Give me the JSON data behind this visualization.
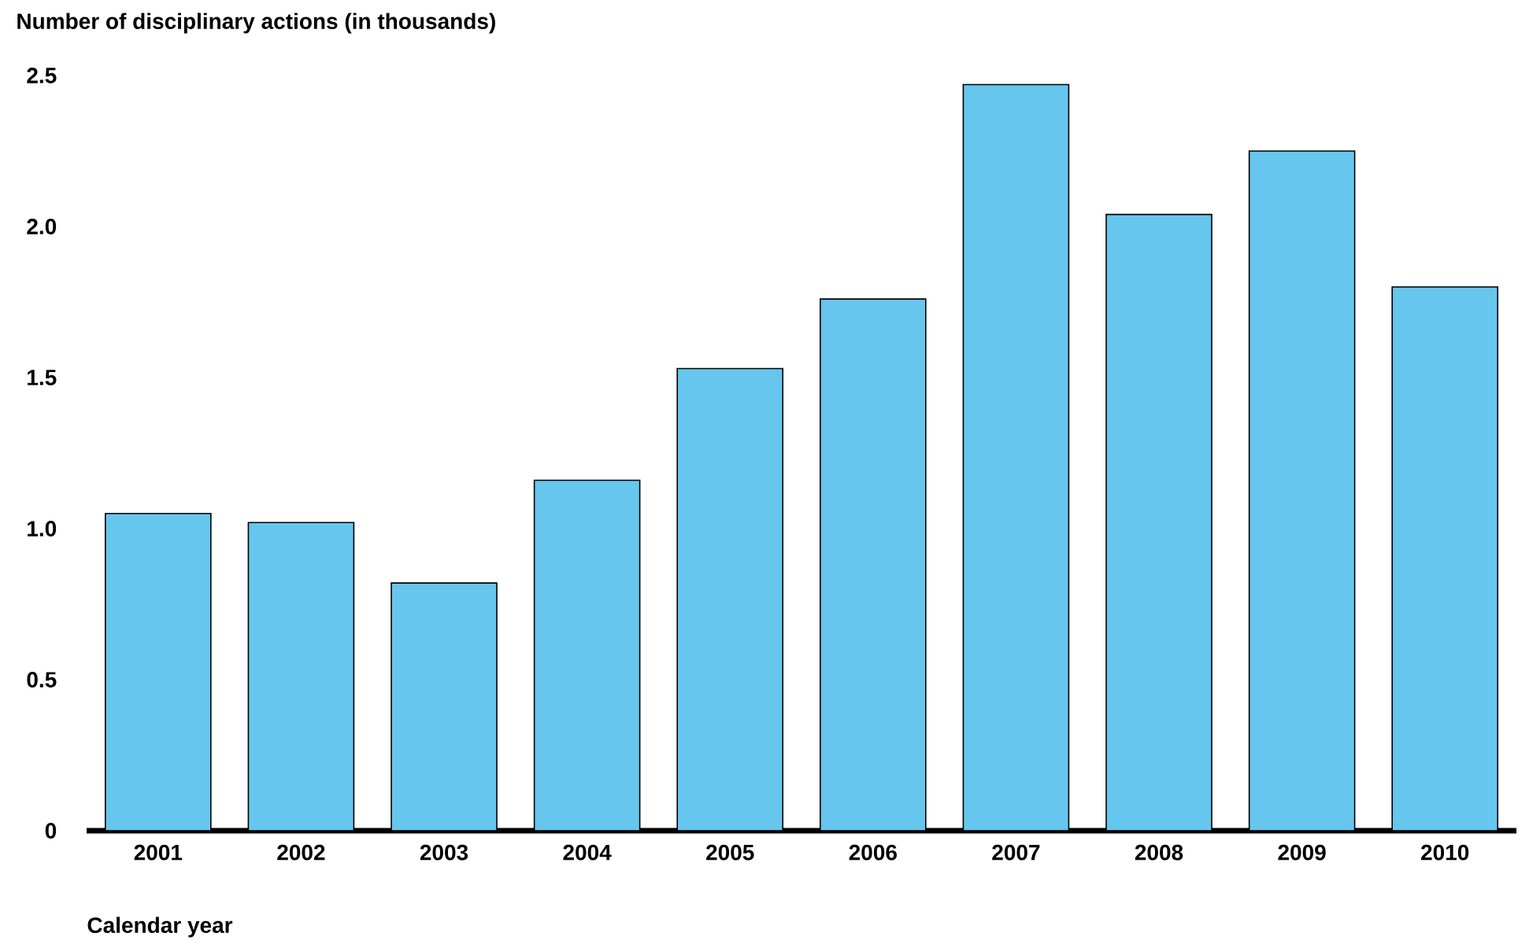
{
  "chart_data": {
    "type": "bar",
    "xlabel": "Calendar year",
    "ylabel": "Number of disciplinary actions (in thousands)",
    "categories": [
      "2001",
      "2002",
      "2003",
      "2004",
      "2005",
      "2006",
      "2007",
      "2008",
      "2009",
      "2010"
    ],
    "values": [
      1.05,
      1.02,
      0.82,
      1.16,
      1.53,
      1.76,
      2.47,
      2.04,
      2.25,
      1.8
    ],
    "color": "#66c6ee",
    "ylim": [
      0,
      2.5
    ],
    "yticks": [
      0,
      0.5,
      {
        "value": 1.0,
        "label": "1.0"
      },
      1.5,
      {
        "value": 2.0,
        "label": "2.0"
      },
      2.5
    ]
  }
}
